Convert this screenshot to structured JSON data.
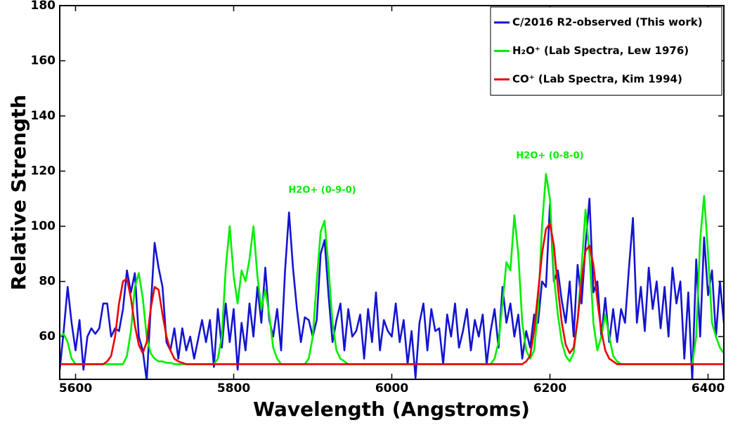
{
  "chart_data": {
    "type": "line",
    "xlabel": "Wavelength (Angstroms)",
    "ylabel": "Relative Strength",
    "xlim": [
      5580,
      6420
    ],
    "ylim": [
      44.5,
      180
    ],
    "xticks": [
      5600,
      5800,
      6000,
      6200,
      6400
    ],
    "yticks": [
      60,
      80,
      100,
      120,
      140,
      160,
      180
    ],
    "legend": "upper right",
    "annotations": [
      {
        "text": "H2O+ (0-9-0)",
        "x": 5912,
        "y": 113,
        "color": "#00ee00"
      },
      {
        "text": "H2O+ (0-8-0)",
        "x": 6200,
        "y": 125.5,
        "color": "#00ee00"
      }
    ],
    "x": [
      5580,
      5585,
      5590,
      5595,
      5600,
      5605,
      5610,
      5615,
      5620,
      5625,
      5630,
      5635,
      5640,
      5645,
      5650,
      5655,
      5660,
      5665,
      5670,
      5675,
      5680,
      5685,
      5690,
      5695,
      5700,
      5705,
      5710,
      5715,
      5720,
      5725,
      5730,
      5735,
      5740,
      5745,
      5750,
      5755,
      5760,
      5765,
      5770,
      5775,
      5780,
      5785,
      5790,
      5795,
      5800,
      5805,
      5810,
      5815,
      5820,
      5825,
      5830,
      5835,
      5840,
      5845,
      5850,
      5855,
      5860,
      5865,
      5870,
      5875,
      5880,
      5885,
      5890,
      5895,
      5900,
      5905,
      5910,
      5915,
      5920,
      5925,
      5930,
      5935,
      5940,
      5945,
      5950,
      5955,
      5960,
      5965,
      5970,
      5975,
      5980,
      5985,
      5990,
      5995,
      6000,
      6005,
      6010,
      6015,
      6020,
      6025,
      6030,
      6035,
      6040,
      6045,
      6050,
      6055,
      6060,
      6065,
      6070,
      6075,
      6080,
      6085,
      6090,
      6095,
      6100,
      6105,
      6110,
      6115,
      6120,
      6125,
      6130,
      6135,
      6140,
      6145,
      6150,
      6155,
      6160,
      6165,
      6170,
      6175,
      6180,
      6185,
      6190,
      6195,
      6200,
      6205,
      6210,
      6215,
      6220,
      6225,
      6230,
      6235,
      6240,
      6245,
      6250,
      6255,
      6260,
      6265,
      6270,
      6275,
      6280,
      6285,
      6290,
      6295,
      6300,
      6305,
      6310,
      6315,
      6320,
      6325,
      6330,
      6335,
      6340,
      6345,
      6350,
      6355,
      6360,
      6365,
      6370,
      6375,
      6380,
      6385,
      6390,
      6395,
      6400,
      6405,
      6410,
      6415,
      6420
    ],
    "series": [
      {
        "name": "C/2016 R2-observed (This work)",
        "color": "#1414d2",
        "values": [
          48,
          62,
          78,
          65,
          55,
          66,
          48,
          60,
          63,
          61,
          63,
          72,
          72,
          60,
          63,
          62,
          70,
          84,
          76,
          83,
          60,
          55,
          44,
          70,
          94,
          85,
          78,
          58,
          55,
          63,
          52,
          63,
          55,
          60,
          52,
          59,
          66,
          58,
          66,
          49,
          70,
          56,
          72,
          58,
          70,
          48,
          65,
          55,
          72,
          60,
          78,
          65,
          85,
          66,
          60,
          70,
          55,
          84,
          105,
          85,
          70,
          58,
          67,
          66,
          60,
          66,
          90,
          95,
          75,
          58,
          66,
          72,
          55,
          70,
          60,
          62,
          68,
          52,
          70,
          58,
          76,
          55,
          66,
          62,
          60,
          72,
          58,
          66,
          50,
          62,
          45,
          65,
          72,
          55,
          70,
          62,
          63,
          50,
          68,
          60,
          72,
          56,
          62,
          70,
          55,
          66,
          60,
          68,
          50,
          62,
          70,
          56,
          78,
          65,
          72,
          60,
          68,
          52,
          62,
          56,
          68,
          65,
          80,
          78,
          108,
          80,
          84,
          73,
          65,
          80,
          60,
          86,
          72,
          93,
          110,
          76,
          80,
          60,
          74,
          58,
          70,
          58,
          70,
          65,
          85,
          103,
          65,
          78,
          62,
          85,
          70,
          80,
          63,
          78,
          60,
          85,
          72,
          80,
          52,
          76,
          44,
          88,
          60,
          96,
          75,
          84,
          60,
          80,
          65
        ]
      },
      {
        "name": "H₂O⁺ (Lab Spectra, Lew 1976)",
        "color": "#00ee00",
        "values": [
          60,
          61,
          58,
          52,
          50,
          50,
          50,
          50,
          50,
          50,
          50,
          50,
          50,
          50,
          50,
          50,
          50,
          53,
          62,
          78,
          83,
          74,
          60,
          54,
          52,
          51,
          51,
          50.5,
          50.5,
          50,
          50,
          50,
          50,
          50,
          50,
          50,
          50,
          50,
          50,
          50,
          52,
          60,
          85,
          100,
          82,
          72,
          84,
          80,
          88,
          100,
          82,
          70,
          77,
          68,
          56,
          52,
          50,
          50,
          50,
          50,
          50,
          50,
          50,
          52,
          60,
          80,
          98,
          102,
          85,
          65,
          55,
          52,
          51,
          50,
          50,
          50,
          50,
          50,
          50,
          50,
          50,
          50,
          50,
          50,
          50,
          50,
          50,
          50,
          50,
          50,
          50,
          50,
          50,
          50,
          50,
          50,
          50,
          50,
          50,
          50,
          50,
          50,
          50,
          50,
          50,
          50,
          50,
          50,
          50,
          50,
          52,
          58,
          72,
          87,
          84,
          104,
          90,
          65,
          55,
          52,
          55,
          70,
          100,
          119,
          110,
          82,
          68,
          58,
          53,
          51,
          54,
          66,
          85,
          106,
          90,
          65,
          55,
          60,
          68,
          60,
          53,
          51,
          50,
          50,
          50,
          50,
          50,
          50,
          50,
          50,
          50,
          50,
          50,
          50,
          50,
          50,
          50,
          50,
          50,
          50,
          50,
          60,
          95,
          111,
          90,
          65,
          60,
          56,
          54
        ]
      },
      {
        "name": "CO⁺ (Lab Spectra, Kim 1994)",
        "color": "#ee0000",
        "values": [
          50,
          50,
          50,
          50,
          50,
          50,
          50,
          50,
          50,
          50,
          50,
          50,
          51,
          53,
          60,
          72,
          80,
          81,
          74,
          64,
          57,
          54,
          58,
          70,
          78,
          77,
          68,
          60,
          55,
          52,
          51,
          50.5,
          50,
          50,
          50,
          50,
          50,
          50,
          50,
          50,
          50,
          50,
          50,
          50,
          50,
          50,
          50,
          50,
          50,
          50,
          50,
          50,
          50,
          50,
          50,
          50,
          50,
          50,
          50,
          50,
          50,
          50,
          50,
          50,
          50,
          50,
          50,
          50,
          50,
          50,
          50,
          50,
          50,
          50,
          50,
          50,
          50,
          50,
          50,
          50,
          50,
          50,
          50,
          50,
          50,
          50,
          50,
          50,
          50,
          50,
          50,
          50,
          50,
          50,
          50,
          50,
          50,
          50,
          50,
          50,
          50,
          50,
          50,
          50,
          50,
          50,
          50,
          50,
          50,
          50,
          50,
          50,
          50,
          50,
          50,
          50,
          50,
          50,
          51,
          53,
          62,
          76,
          90,
          99,
          101,
          93,
          78,
          65,
          57,
          54,
          56,
          66,
          80,
          91,
          93,
          86,
          73,
          62,
          55,
          52,
          51,
          50,
          50,
          50,
          50,
          50,
          50,
          50,
          50,
          50,
          50,
          50,
          50,
          50,
          50,
          50,
          50,
          50,
          50,
          50,
          50,
          50,
          50,
          50,
          50,
          50,
          50,
          50,
          50
        ]
      }
    ]
  }
}
